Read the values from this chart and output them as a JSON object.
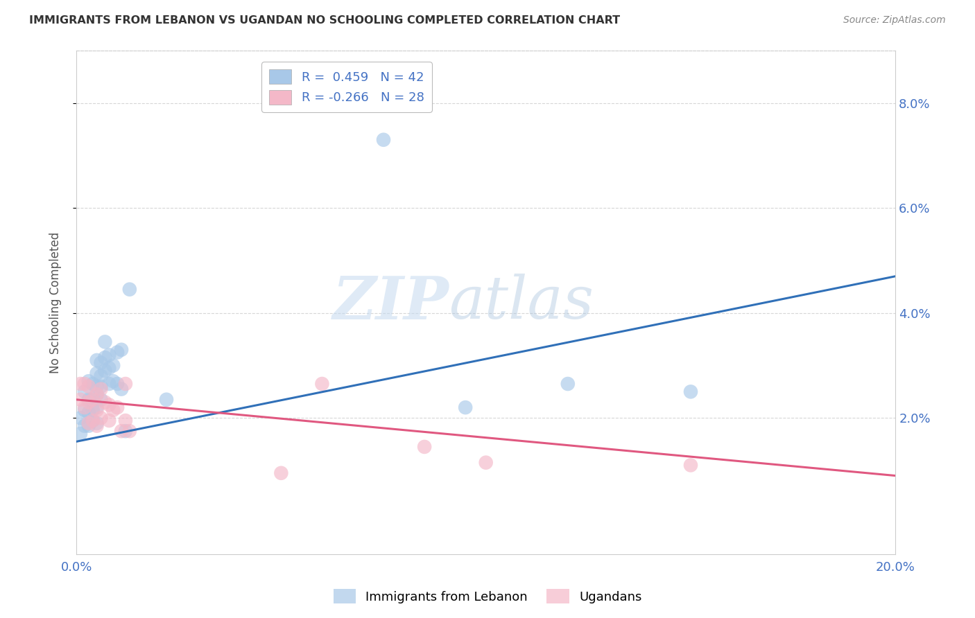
{
  "title": "IMMIGRANTS FROM LEBANON VS UGANDAN NO SCHOOLING COMPLETED CORRELATION CHART",
  "source": "Source: ZipAtlas.com",
  "ylabel": "No Schooling Completed",
  "right_yticks": [
    "8.0%",
    "6.0%",
    "4.0%",
    "2.0%"
  ],
  "right_ytick_vals": [
    0.08,
    0.06,
    0.04,
    0.02
  ],
  "legend_label1": "R =  0.459   N = 42",
  "legend_label2": "R = -0.266   N = 28",
  "legend_group1": "Immigrants from Lebanon",
  "legend_group2": "Ugandans",
  "blue_color": "#a8c8e8",
  "pink_color": "#f4b8c8",
  "blue_line_color": "#3070b8",
  "pink_line_color": "#e05880",
  "blue_scatter_x": [
    0.001,
    0.001,
    0.002,
    0.002,
    0.002,
    0.003,
    0.003,
    0.003,
    0.003,
    0.004,
    0.004,
    0.004,
    0.004,
    0.005,
    0.005,
    0.005,
    0.005,
    0.005,
    0.005,
    0.006,
    0.006,
    0.006,
    0.006,
    0.007,
    0.007,
    0.007,
    0.008,
    0.008,
    0.008,
    0.009,
    0.009,
    0.01,
    0.01,
    0.011,
    0.011,
    0.012,
    0.013,
    0.022,
    0.075,
    0.095,
    0.12,
    0.15
  ],
  "blue_scatter_y": [
    0.02,
    0.017,
    0.025,
    0.0215,
    0.0185,
    0.027,
    0.0235,
    0.021,
    0.0185,
    0.0265,
    0.0235,
    0.0215,
    0.0195,
    0.031,
    0.0285,
    0.026,
    0.0245,
    0.022,
    0.019,
    0.0305,
    0.028,
    0.026,
    0.0235,
    0.0345,
    0.0315,
    0.029,
    0.032,
    0.0295,
    0.0265,
    0.03,
    0.027,
    0.0325,
    0.0265,
    0.033,
    0.0255,
    0.0175,
    0.0445,
    0.0235,
    0.073,
    0.022,
    0.0265,
    0.025
  ],
  "pink_scatter_x": [
    0.001,
    0.001,
    0.002,
    0.002,
    0.003,
    0.003,
    0.003,
    0.004,
    0.004,
    0.005,
    0.005,
    0.005,
    0.006,
    0.006,
    0.007,
    0.008,
    0.008,
    0.009,
    0.01,
    0.011,
    0.012,
    0.012,
    0.013,
    0.05,
    0.06,
    0.085,
    0.1,
    0.15
  ],
  "pink_scatter_y": [
    0.0265,
    0.0235,
    0.0265,
    0.022,
    0.026,
    0.023,
    0.019,
    0.0235,
    0.0195,
    0.0245,
    0.0215,
    0.0185,
    0.0255,
    0.02,
    0.023,
    0.0225,
    0.0195,
    0.0215,
    0.022,
    0.0175,
    0.0265,
    0.0195,
    0.0175,
    0.0095,
    0.0265,
    0.0145,
    0.0115,
    0.011
  ],
  "blue_line": {
    "x0": 0.0,
    "x1": 0.2,
    "y0": 0.0155,
    "y1": 0.047
  },
  "pink_line": {
    "x0": 0.0,
    "x1": 0.2,
    "y0": 0.0235,
    "y1": 0.009
  },
  "xlim": [
    0.0,
    0.2
  ],
  "ylim": [
    -0.006,
    0.09
  ],
  "background_color": "#ffffff",
  "grid_color": "#cccccc",
  "title_color": "#333333",
  "axis_color": "#4472c4",
  "watermark_zip": "ZIP",
  "watermark_atlas": "atlas"
}
